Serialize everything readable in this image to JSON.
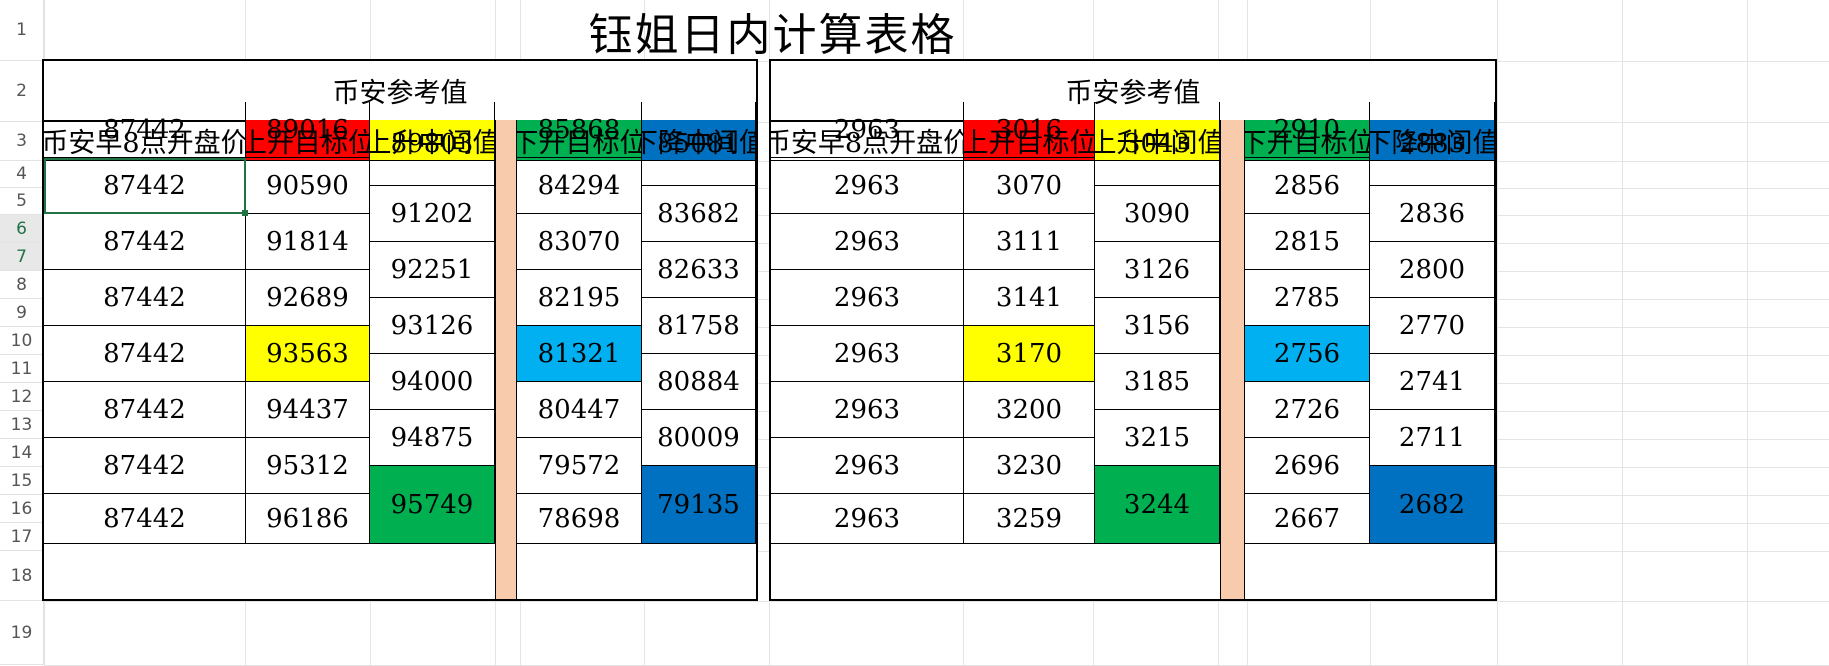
{
  "sheet": {
    "title": "钰姐日内计算表格",
    "row_numbers": [
      "1",
      "2",
      "3",
      "4",
      "5",
      "6",
      "7",
      "8",
      "9",
      "10",
      "11",
      "12",
      "13",
      "14",
      "15",
      "16",
      "17",
      "18",
      "19"
    ],
    "selected_rows": [
      "6",
      "7"
    ]
  },
  "colors": {
    "red": "#ff0000",
    "yellow": "#ffff00",
    "green": "#00b050",
    "blue_light": "#00b0f0",
    "blue_dark": "#0070c0",
    "separator": "#f8cbad",
    "selection": "#217346"
  },
  "left_block": {
    "title": "币安参考值",
    "headers": [
      "币安早8点开盘价",
      "上开目标位",
      "上升中间值",
      "下开目标位",
      "下降中间值"
    ],
    "open_price": [
      "87442",
      "87442",
      "87442",
      "87442",
      "87442",
      "87442",
      "87442",
      "87442"
    ],
    "up_target": [
      "89016",
      "90590",
      "91814",
      "92689",
      "93563",
      "94437",
      "95312",
      "96186"
    ],
    "up_mid": [
      "89803",
      "91202",
      "92251",
      "93126",
      "94000",
      "94875",
      "95749"
    ],
    "down_target": [
      "85868",
      "84294",
      "83070",
      "82195",
      "81321",
      "80447",
      "79572",
      "78698"
    ],
    "down_mid": [
      "85081",
      "83682",
      "82633",
      "81758",
      "80884",
      "80009",
      "79135"
    ]
  },
  "right_block": {
    "title": "币安参考值",
    "headers": [
      "币安早8点开盘价",
      "上开目标位",
      "上升中间值",
      "下开目标位",
      "下降中间值"
    ],
    "open_price": [
      "2963",
      "2963",
      "2963",
      "2963",
      "2963",
      "2963",
      "2963",
      "2963"
    ],
    "up_target": [
      "3016",
      "3070",
      "3111",
      "3141",
      "3170",
      "3200",
      "3230",
      "3259"
    ],
    "up_mid": [
      "3043",
      "3090",
      "3126",
      "3156",
      "3185",
      "3215",
      "3244"
    ],
    "down_target": [
      "2910",
      "2856",
      "2815",
      "2785",
      "2756",
      "2726",
      "2696",
      "2667"
    ],
    "down_mid": [
      "2883",
      "2836",
      "2800",
      "2770",
      "2741",
      "2711",
      "2682"
    ]
  }
}
